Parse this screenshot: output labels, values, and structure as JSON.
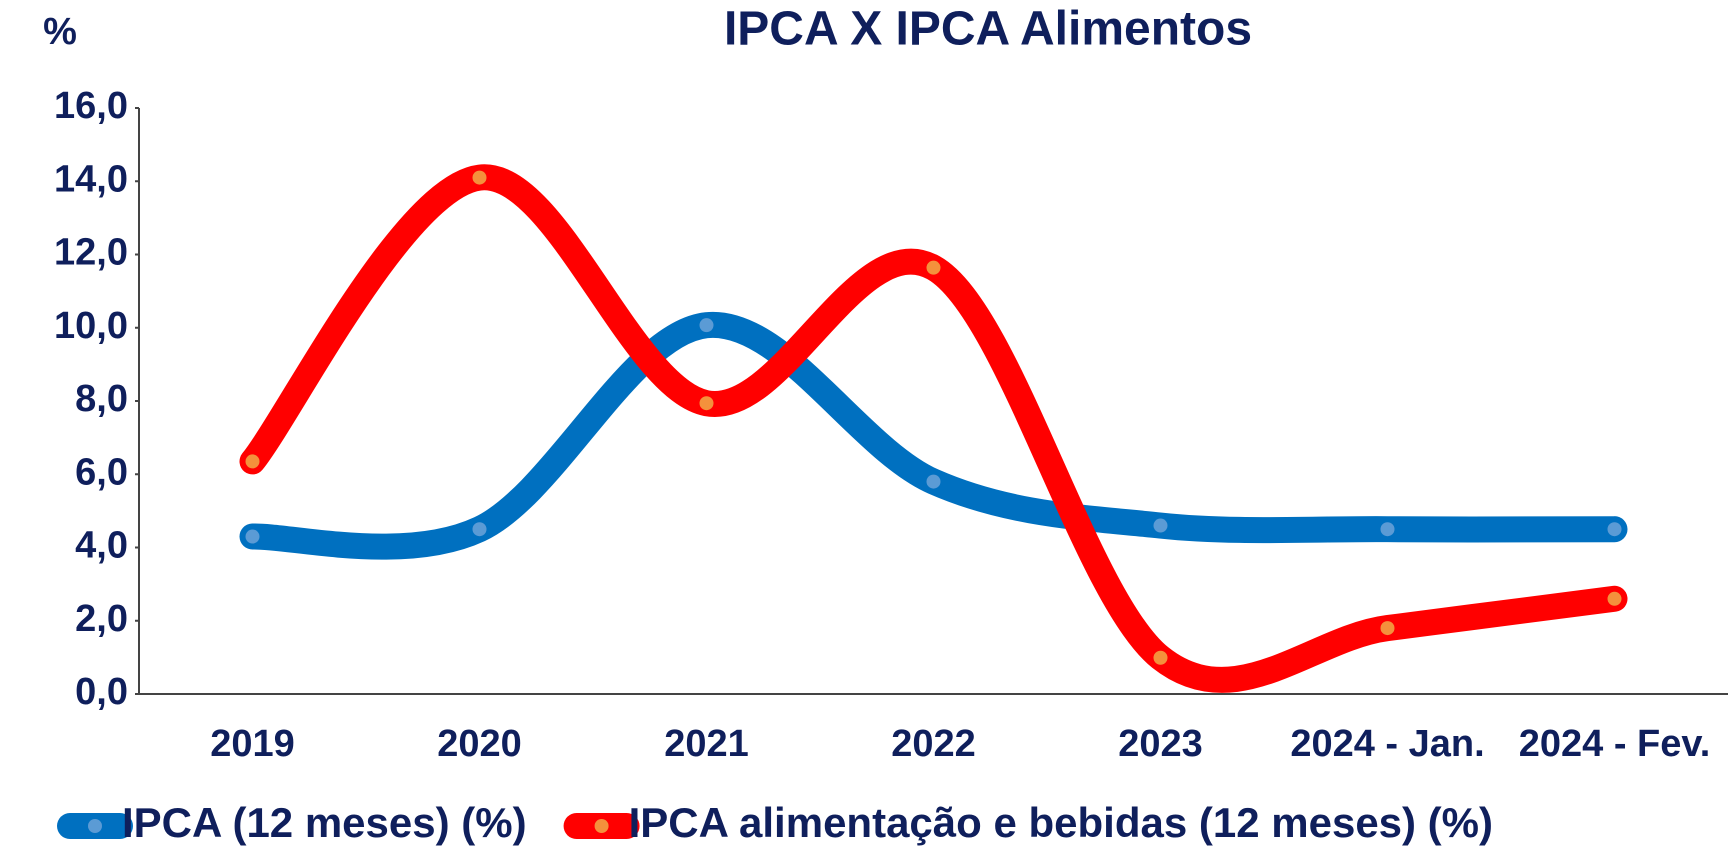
{
  "chart_data": {
    "type": "line",
    "title": "IPCA X IPCA Alimentos",
    "y_label": "%",
    "categories": [
      "2019",
      "2020",
      "2021",
      "2022",
      "2023",
      "2024 - Jan.",
      "2024 - Fev."
    ],
    "series": [
      {
        "name": "IPCA (12 meses) (%)",
        "color": "#0070c0",
        "marker_color": "#5b9bd5",
        "values": [
          4.3,
          4.5,
          10.07,
          5.8,
          4.6,
          4.5,
          4.5
        ]
      },
      {
        "name": "IPCA alimentação e bebidas (12 meses) (%)",
        "color": "#ff0000",
        "marker_color": "#f4913c",
        "values": [
          6.35,
          14.1,
          7.94,
          11.64,
          0.99,
          1.8,
          2.6
        ]
      }
    ],
    "ylim": [
      0,
      16
    ],
    "yticks": [
      {
        "value": 0,
        "label": "0,0"
      },
      {
        "value": 2,
        "label": "2,0"
      },
      {
        "value": 4,
        "label": "4,0"
      },
      {
        "value": 6,
        "label": "6,0"
      },
      {
        "value": 8,
        "label": "8,0"
      },
      {
        "value": 10,
        "label": "10,0"
      },
      {
        "value": 12,
        "label": "12,0"
      },
      {
        "value": 14,
        "label": "14,0"
      },
      {
        "value": 16,
        "label": "16,0"
      }
    ],
    "grid": false,
    "legend": "bottom"
  }
}
